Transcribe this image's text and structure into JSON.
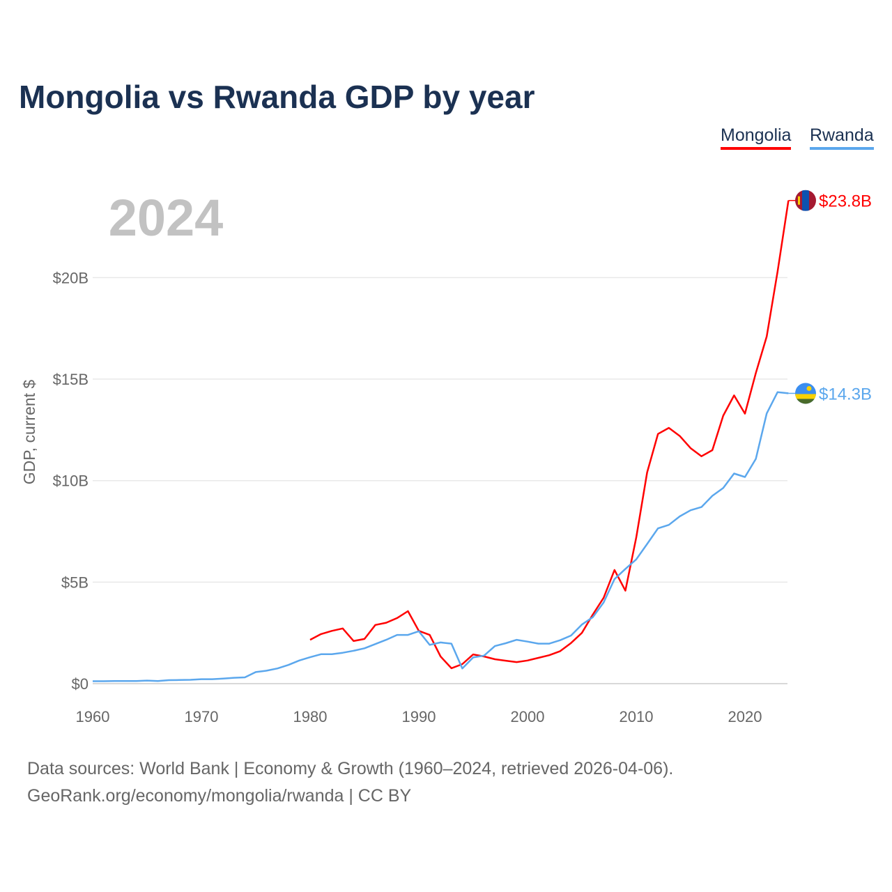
{
  "chart_data": {
    "type": "line",
    "title": "Mongolia vs Rwanda GDP by year",
    "year_label": "2024",
    "ylabel": "GDP, current $",
    "xlabel": "",
    "xlim": [
      1960,
      2024
    ],
    "ylim": [
      0,
      24
    ],
    "grid": true,
    "legend_position": "top-right",
    "x_ticks": [
      1960,
      1970,
      1980,
      1990,
      2000,
      2010,
      2020
    ],
    "x_tick_labels": [
      "1960",
      "1970",
      "1980",
      "1990",
      "2000",
      "2010",
      "2020"
    ],
    "y_ticks": [
      0,
      5,
      10,
      15,
      20
    ],
    "y_tick_labels": [
      "$0",
      "$5B",
      "$10B",
      "$15B",
      "$20B"
    ],
    "series": [
      {
        "name": "Mongolia",
        "color": "#ff0000",
        "end_label": "$23.8B",
        "flag": "mongolia-flag",
        "start_year": 1980,
        "values": [
          2.16,
          2.44,
          2.6,
          2.72,
          2.1,
          2.2,
          2.89,
          3.0,
          3.23,
          3.57,
          2.6,
          2.4,
          1.34,
          0.76,
          0.96,
          1.44,
          1.34,
          1.2,
          1.13,
          1.06,
          1.14,
          1.27,
          1.4,
          1.6,
          2.0,
          2.5,
          3.4,
          4.23,
          5.6,
          4.58,
          7.2,
          10.4,
          12.3,
          12.6,
          12.2,
          11.6,
          11.2,
          11.5,
          13.2,
          14.2,
          13.3,
          15.3,
          17.1,
          20.3,
          23.8
        ]
      },
      {
        "name": "Rwanda",
        "color": "#5ba7ed",
        "end_label": "$14.3B",
        "flag": "rwanda-flag",
        "start_year": 1960,
        "values": [
          0.12,
          0.12,
          0.13,
          0.13,
          0.13,
          0.15,
          0.13,
          0.17,
          0.18,
          0.19,
          0.22,
          0.22,
          0.25,
          0.29,
          0.31,
          0.57,
          0.64,
          0.75,
          0.92,
          1.14,
          1.3,
          1.45,
          1.45,
          1.52,
          1.62,
          1.74,
          1.95,
          2.16,
          2.4,
          2.4,
          2.58,
          1.91,
          2.03,
          1.97,
          0.75,
          1.29,
          1.38,
          1.85,
          1.99,
          2.16,
          2.07,
          1.97,
          1.97,
          2.14,
          2.37,
          2.91,
          3.27,
          4.0,
          5.15,
          5.65,
          6.12,
          6.88,
          7.65,
          7.82,
          8.24,
          8.54,
          8.7,
          9.25,
          9.64,
          10.35,
          10.18,
          11.07,
          13.31,
          14.36,
          14.3
        ]
      }
    ]
  },
  "source": {
    "line1": "Data sources: World Bank | Economy & Growth (1960–2024, retrieved 2026-04-06).",
    "line2": "GeoRank.org/economy/mongolia/rwanda | CC BY"
  }
}
